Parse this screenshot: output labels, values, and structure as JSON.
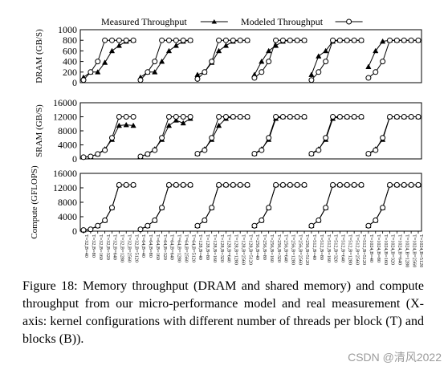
{
  "figure": {
    "caption": "Figure 18: Memory throughput (DRAM and shared memory) and compute throughput from our micro-performance model and real measurement (X-axis: kernel configurations with different number of threads per block (T) and blocks (B)).",
    "watermark": "CSDN @清风2022"
  },
  "chart_data": [
    {
      "type": "line",
      "ylabel": "DRAM (GB/S)",
      "ylim": [
        0,
        1000
      ],
      "yticks": [
        0,
        200,
        400,
        600,
        800,
        1000
      ],
      "legend_position": "top",
      "series": [
        {
          "name": "Measured Throughput",
          "marker": "triangle",
          "values": [
            100,
            200,
            200,
            380,
            600,
            700,
            780,
            800,
            100,
            200,
            200,
            400,
            600,
            700,
            780,
            800,
            150,
            200,
            380,
            600,
            700,
            780,
            800,
            800,
            150,
            400,
            600,
            700,
            780,
            800,
            800,
            800,
            150,
            500,
            600,
            780,
            800,
            800,
            800,
            800,
            300,
            600,
            780,
            800,
            800,
            800,
            800,
            800
          ]
        },
        {
          "name": "Modeled Throughput",
          "marker": "circle",
          "values": [
            50,
            200,
            400,
            800,
            800,
            800,
            800,
            800,
            50,
            200,
            400,
            800,
            800,
            800,
            800,
            800,
            70,
            200,
            400,
            800,
            800,
            800,
            800,
            800,
            90,
            200,
            400,
            800,
            800,
            800,
            800,
            800,
            50,
            200,
            400,
            800,
            800,
            800,
            800,
            800,
            90,
            200,
            400,
            800,
            800,
            800,
            800,
            800
          ]
        }
      ]
    },
    {
      "type": "line",
      "ylabel": "SRAM (GB/S)",
      "ylim": [
        0,
        16000
      ],
      "yticks": [
        0,
        4000,
        8000,
        12000,
        16000
      ],
      "series": [
        {
          "name": "Measured Throughput",
          "marker": "triangle",
          "values": [
            500,
            700,
            1400,
            2800,
            5500,
            9500,
            9700,
            9500,
            700,
            1400,
            2800,
            5500,
            9500,
            11000,
            10200,
            11500,
            1500,
            2800,
            5500,
            9500,
            11500,
            12000,
            12000,
            12000,
            1500,
            2800,
            5500,
            11500,
            12000,
            12000,
            12000,
            12000,
            1500,
            2800,
            5500,
            11500,
            12000,
            12000,
            12000,
            12000,
            1500,
            2800,
            5500,
            12000,
            12000,
            12000,
            12000,
            12000
          ]
        },
        {
          "name": "Modeled Throughput",
          "marker": "circle",
          "values": [
            500,
            700,
            1400,
            2500,
            6000,
            12000,
            12000,
            12000,
            700,
            1400,
            2500,
            6000,
            12000,
            12000,
            12000,
            12000,
            1500,
            2500,
            6000,
            12000,
            12000,
            12000,
            12000,
            12000,
            1500,
            2500,
            6000,
            12000,
            12000,
            12000,
            12000,
            12000,
            1500,
            2500,
            6000,
            12000,
            12000,
            12000,
            12000,
            12000,
            1500,
            2500,
            6000,
            12000,
            12000,
            12000,
            12000,
            12000
          ]
        }
      ]
    },
    {
      "type": "line",
      "ylabel": "Compute (GFLOPS)",
      "ylim": [
        0,
        16000
      ],
      "yticks": [
        0,
        4000,
        8000,
        12000,
        16000
      ],
      "series": [
        {
          "name": "Measured Throughput",
          "marker": "triangle",
          "values": [
            300,
            500,
            1500,
            3000,
            6500,
            12800,
            12800,
            12800,
            500,
            1500,
            3000,
            6500,
            12800,
            12800,
            12800,
            12800,
            1500,
            3000,
            6500,
            12800,
            12800,
            12800,
            12800,
            12800,
            1500,
            3000,
            6500,
            12800,
            12800,
            12800,
            12800,
            12800,
            1500,
            3000,
            6500,
            12800,
            12800,
            12800,
            12800,
            12800,
            1500,
            3000,
            6500,
            12800,
            12800,
            12800,
            12800,
            12800
          ]
        },
        {
          "name": "Modeled Throughput",
          "marker": "circle",
          "values": [
            300,
            500,
            1500,
            3000,
            6500,
            12800,
            12800,
            12800,
            500,
            1500,
            3000,
            6500,
            12800,
            12800,
            12800,
            12800,
            1500,
            3000,
            6500,
            12800,
            12800,
            12800,
            12800,
            12800,
            1500,
            3000,
            6500,
            12800,
            12800,
            12800,
            12800,
            12800,
            1500,
            3000,
            6500,
            12800,
            12800,
            12800,
            12800,
            12800,
            1500,
            3000,
            6500,
            12800,
            12800,
            12800,
            12800,
            12800
          ]
        }
      ]
    }
  ],
  "x_axis": {
    "categories": [
      "T=32,B=40",
      "T=32,B=80",
      "T=32,B=160",
      "T=32,B=320",
      "T=32,B=640",
      "T=32,B=1280",
      "T=32,B=2560",
      "T=32,B=5120",
      "T=64,B=40",
      "T=64,B=80",
      "T=64,B=160",
      "T=64,B=320",
      "T=64,B=640",
      "T=64,B=1280",
      "T=64,B=2560",
      "T=64,B=5120",
      "T=128,B=40",
      "T=128,B=80",
      "T=128,B=160",
      "T=128,B=320",
      "T=128,B=640",
      "T=128,B=1280",
      "T=128,B=2560",
      "T=128,B=5120",
      "T=256,B=40",
      "T=256,B=80",
      "T=256,B=160",
      "T=256,B=320",
      "T=256,B=640",
      "T=256,B=1280",
      "T=256,B=2560",
      "T=256,B=5120",
      "T=512,B=40",
      "T=512,B=80",
      "T=512,B=160",
      "T=512,B=320",
      "T=512,B=640",
      "T=512,B=1280",
      "T=512,B=2560",
      "T=512,B=5120",
      "T=1024,B=40",
      "T=1024,B=80",
      "T=1024,B=160",
      "T=1024,B=320",
      "T=1024,B=640",
      "T=1024,B=1280",
      "T=1024,B=2560",
      "T=1024,B=5120"
    ],
    "group_size": 8
  }
}
